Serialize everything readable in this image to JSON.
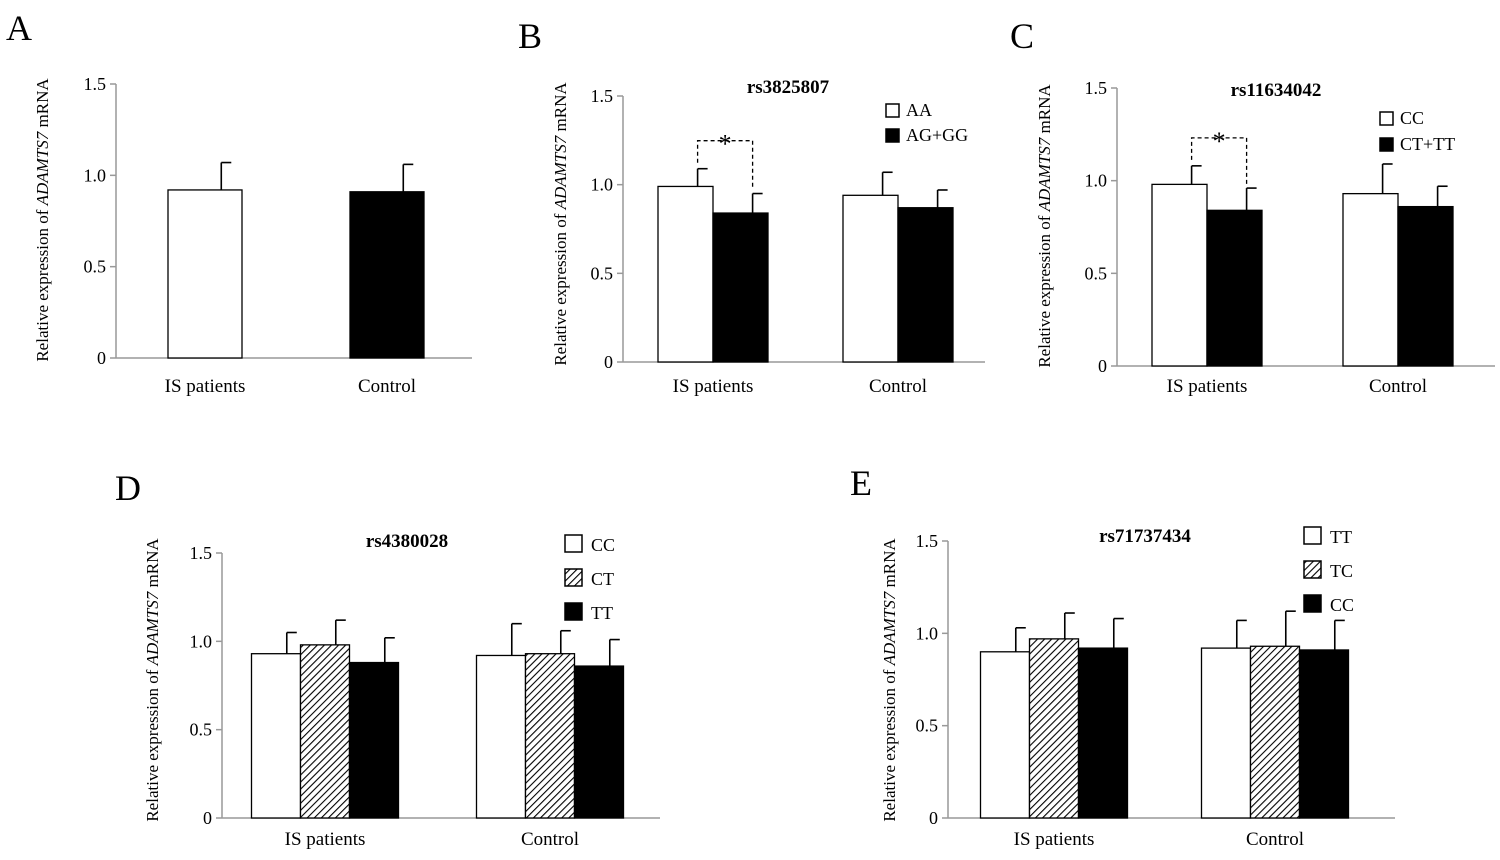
{
  "chart_data": [
    {
      "panel": "A",
      "type": "bar",
      "title": "",
      "ylabel_prefix": "Relative expression of ",
      "ylabel_gene": "ADAMTS7",
      "ylabel_suffix": " mRNA",
      "ylim": [
        0,
        1.5
      ],
      "yticks": [
        "0",
        "0.5",
        "1.0",
        "1.5"
      ],
      "categories": [
        "IS patients",
        "Control"
      ],
      "series": [
        {
          "values": [
            0.92,
            0.91
          ],
          "errors": [
            0.15,
            0.15
          ],
          "fills": [
            "white",
            "black"
          ]
        }
      ],
      "legend": [],
      "significance": []
    },
    {
      "panel": "B",
      "type": "bar",
      "title": "rs3825807",
      "ylabel_prefix": "Relative expression of ",
      "ylabel_gene": "ADAMTS7",
      "ylabel_suffix": " mRNA",
      "ylim": [
        0,
        1.5
      ],
      "yticks": [
        "0",
        "0.5",
        "1.0",
        "1.5"
      ],
      "categories": [
        "IS patients",
        "Control"
      ],
      "series": [
        {
          "name": "AA",
          "fill": "white",
          "values": [
            0.99,
            0.94
          ],
          "errors": [
            0.1,
            0.13
          ]
        },
        {
          "name": "AG+GG",
          "fill": "black",
          "values": [
            0.84,
            0.87
          ],
          "errors": [
            0.11,
            0.1
          ]
        }
      ],
      "legend": [
        {
          "label": "AA",
          "fill": "white"
        },
        {
          "label": "AG+GG",
          "fill": "black"
        }
      ],
      "significance": [
        {
          "category": 0,
          "label": "*"
        }
      ]
    },
    {
      "panel": "C",
      "type": "bar",
      "title": "rs11634042",
      "ylabel_prefix": "Relative expression of ",
      "ylabel_gene": "ADAMTS7",
      "ylabel_suffix": " mRNA",
      "ylim": [
        0,
        1.5
      ],
      "yticks": [
        "0",
        "0.5",
        "1.0",
        "1.5"
      ],
      "categories": [
        "IS patients",
        "Control"
      ],
      "series": [
        {
          "name": "CC",
          "fill": "white",
          "values": [
            0.98,
            0.93
          ],
          "errors": [
            0.1,
            0.16
          ]
        },
        {
          "name": "CT+TT",
          "fill": "black",
          "values": [
            0.84,
            0.86
          ],
          "errors": [
            0.12,
            0.11
          ]
        }
      ],
      "legend": [
        {
          "label": "CC",
          "fill": "white"
        },
        {
          "label": "CT+TT",
          "fill": "black"
        }
      ],
      "significance": [
        {
          "category": 0,
          "label": "*"
        }
      ]
    },
    {
      "panel": "D",
      "type": "bar",
      "title": "rs4380028",
      "ylabel_prefix": "Relative expression of ",
      "ylabel_gene": "ADAMTS7",
      "ylabel_suffix": " mRNA",
      "ylim": [
        0,
        1.5
      ],
      "yticks": [
        "0",
        "0.5",
        "1.0",
        "1.5"
      ],
      "categories": [
        "IS patients",
        "Control"
      ],
      "series": [
        {
          "name": "CC",
          "fill": "white",
          "values": [
            0.93,
            0.92
          ],
          "errors": [
            0.12,
            0.18
          ]
        },
        {
          "name": "CT",
          "fill": "hatch",
          "values": [
            0.98,
            0.93
          ],
          "errors": [
            0.14,
            0.13
          ]
        },
        {
          "name": "TT",
          "fill": "black",
          "values": [
            0.88,
            0.86
          ],
          "errors": [
            0.14,
            0.15
          ]
        }
      ],
      "legend": [
        {
          "label": "CC",
          "fill": "white"
        },
        {
          "label": "CT",
          "fill": "hatch"
        },
        {
          "label": "TT",
          "fill": "black"
        }
      ],
      "significance": []
    },
    {
      "panel": "E",
      "type": "bar",
      "title": "rs71737434",
      "ylabel_prefix": "Relative expression of ",
      "ylabel_gene": "ADAMTS7",
      "ylabel_suffix": " mRNA",
      "ylim": [
        0,
        1.5
      ],
      "yticks": [
        "0",
        "0.5",
        "1.0",
        "1.5"
      ],
      "categories": [
        "IS patients",
        "Control"
      ],
      "series": [
        {
          "name": "TT",
          "fill": "white",
          "values": [
            0.9,
            0.92
          ],
          "errors": [
            0.13,
            0.15
          ]
        },
        {
          "name": "TC",
          "fill": "hatch",
          "values": [
            0.97,
            0.93
          ],
          "errors": [
            0.14,
            0.19
          ]
        },
        {
          "name": "CC",
          "fill": "black",
          "values": [
            0.92,
            0.91
          ],
          "errors": [
            0.16,
            0.16
          ]
        }
      ],
      "legend": [
        {
          "label": "TT",
          "fill": "white"
        },
        {
          "label": "TC",
          "fill": "hatch"
        },
        {
          "label": "CC",
          "fill": "black"
        }
      ],
      "significance": []
    }
  ]
}
